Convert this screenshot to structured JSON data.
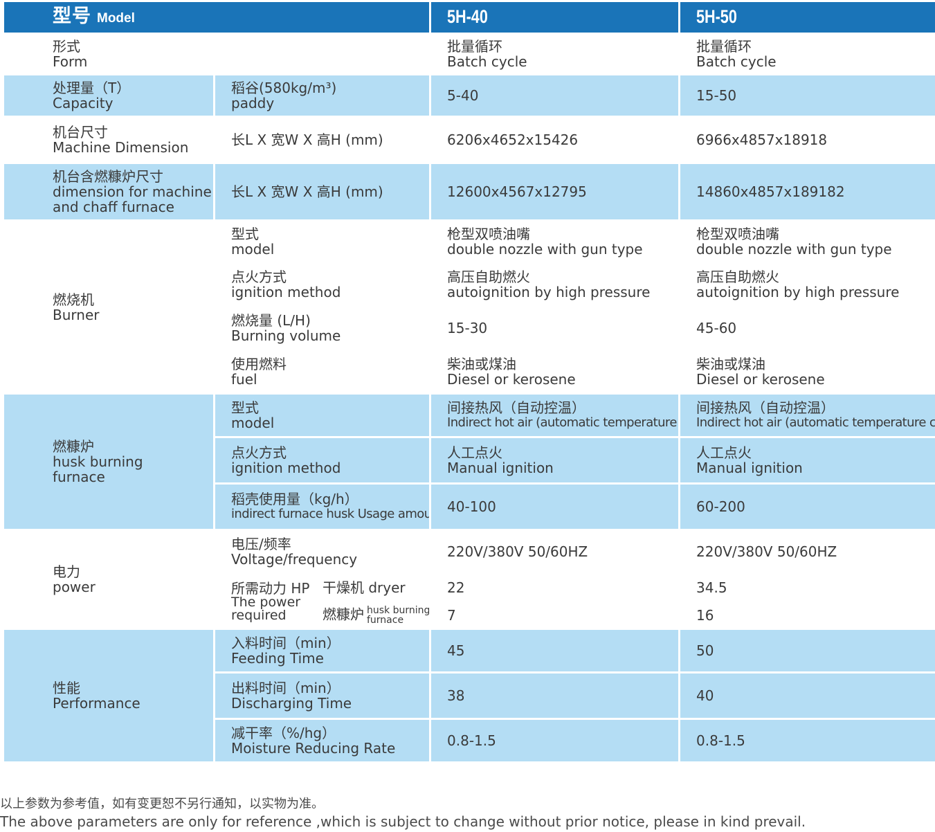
{
  "header": {
    "model_zh": "型号",
    "model_en": "Model",
    "col1": "5H-40",
    "col2": "5H-50"
  },
  "rows": {
    "form": {
      "zh": "形式",
      "en": "Form",
      "v1_zh": "批量循环",
      "v1_en": "Batch cycle",
      "v2_zh": "批量循环",
      "v2_en": "Batch cycle"
    },
    "capacity": {
      "zh": "处理量（T）",
      "en": "Capacity",
      "sub_zh": "稻谷(580kg/m³)",
      "sub_en": "paddy",
      "v1": "5-40",
      "v2": "15-50"
    },
    "machine_dim": {
      "zh": "机台尺寸",
      "en": "Machine Dimension",
      "sub": "长L X 宽W X 高H (mm)",
      "v1": "6206x4652x15426",
      "v2": "6966x4857x18918"
    },
    "dim_chaff": {
      "zh": "机台含燃糠炉尺寸",
      "en1": "dimension for machine",
      "en2": "and chaff furnace",
      "sub": "长L X 宽W X 高H (mm)",
      "v1": "12600x4567x12795",
      "v2": "14860x4857x189182"
    },
    "burner": {
      "zh": "燃烧机",
      "en": "Burner",
      "model": {
        "zh": "型式",
        "en": "model",
        "v1_zh": "枪型双喷油嘴",
        "v1_en": "double nozzle with gun type",
        "v2_zh": "枪型双喷油嘴",
        "v2_en": "double nozzle with gun type"
      },
      "ignition": {
        "zh": "点火方式",
        "en": "ignition method",
        "v1_zh": "高压自助燃火",
        "v1_en": "autoignition by high pressure",
        "v2_zh": "高压自助燃火",
        "v2_en": "autoignition by high pressure"
      },
      "volume": {
        "zh": "燃烧量 (L/H)",
        "en": "Burning volume",
        "v1": "15-30",
        "v2": "45-60"
      },
      "fuel": {
        "zh": "使用燃料",
        "en": "fuel",
        "v1_zh": "柴油或煤油",
        "v1_en": "Diesel or kerosene",
        "v2_zh": "柴油或煤油",
        "v2_en": "Diesel or kerosene"
      }
    },
    "husk": {
      "zh": "燃糠炉",
      "en1": "husk burning",
      "en2": "furnace",
      "model": {
        "zh": "型式",
        "en": "model",
        "v1_zh": "间接热风（自动控温）",
        "v1_en": "Indirect hot air (automatic temperature control)",
        "v2_zh": "间接热风（自动控温）",
        "v2_en": "Indirect hot air (automatic temperature control)"
      },
      "ignition": {
        "zh": "点火方式",
        "en": "ignition method",
        "v1_zh": "人工点火",
        "v1_en": "Manual ignition",
        "v2_zh": "人工点火",
        "v2_en": "Manual ignition"
      },
      "usage": {
        "zh": "稻壳使用量（kg/h）",
        "en": "indirect furnace husk Usage amount",
        "v1": "40-100",
        "v2": "60-200"
      }
    },
    "power": {
      "zh": "电力",
      "en": "power",
      "voltage": {
        "zh": "电压/频率",
        "en": "Voltage/frequency",
        "v1": "220V/380V  50/60HZ",
        "v2": "220V/380V  50/60HZ"
      },
      "required": {
        "zh": "所需动力 HP",
        "en1": "The power",
        "en2": "required"
      },
      "dryer": {
        "label": "干燥机 dryer",
        "v1": "22",
        "v2": "34.5"
      },
      "furnace": {
        "zh": "燃糠炉",
        "en1": "husk burning",
        "en2": "furnace",
        "v1": "7",
        "v2": "16"
      }
    },
    "performance": {
      "zh": "性能",
      "en": "Performance",
      "feeding": {
        "zh": "入料时间（min）",
        "en": "Feeding Time",
        "v1": "45",
        "v2": "50"
      },
      "discharging": {
        "zh": "出料时间（min）",
        "en": "Discharging Time",
        "v1": "38",
        "v2": "40"
      },
      "moisture": {
        "zh": "减干率（%/hg）",
        "en": "Moisture Reducing Rate",
        "v1": "0.8-1.5",
        "v2": "0.8-1.5"
      }
    }
  },
  "notes": {
    "zh": "以上参数为参考值，如有变更恕不另行通知，以实物为准。",
    "en": "The above parameters are only for reference ,which is subject to change without prior notice,  please in kind prevail."
  }
}
